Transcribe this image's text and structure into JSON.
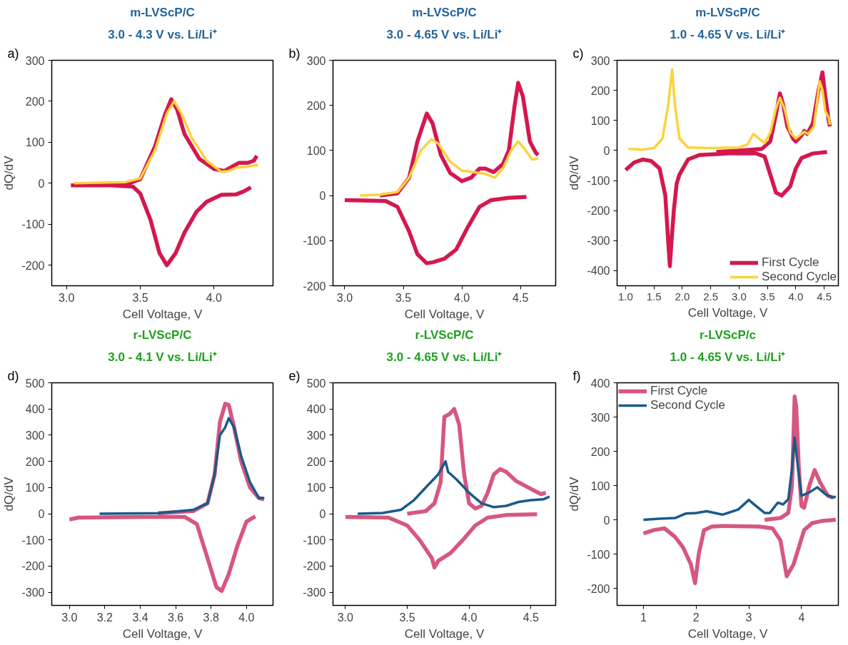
{
  "chart_data": [
    {
      "type": "line",
      "title": "m-LVScP/C",
      "subtitle": "3.0 - 4.3 V vs. Li/Li⁺",
      "xlabel": "Cell Voltage, V",
      "ylabel": "dQ/dV",
      "annotations": [
        "a)"
      ],
      "xlim": [
        2.9,
        4.4
      ],
      "ylim": [
        -250,
        300
      ],
      "xticks": [
        {
          "value": 3,
          "label": "3.0"
        },
        3.5,
        {
          "value": 4,
          "label": "4.0"
        }
      ],
      "yticks": [
        -200,
        -100,
        0,
        100,
        200,
        300
      ],
      "grid": false,
      "legend": false,
      "series": [
        {
          "color": "#d4184f",
          "x": [
            3.03,
            3.4,
            3.5,
            3.6,
            3.67,
            3.71,
            3.75,
            3.8,
            3.9,
            4.0,
            4.07,
            4.12,
            4.17,
            4.23,
            4.27,
            4.29,
            null,
            4.25,
            4.2,
            4.15,
            4.05,
            3.95,
            3.88,
            3.8,
            3.74,
            3.68,
            3.63,
            3.57,
            3.5,
            3.45,
            3.3,
            3.03
          ],
          "values": [
            -5,
            -3,
            10,
            90,
            170,
            205,
            180,
            120,
            60,
            35,
            30,
            40,
            50,
            50,
            55,
            67,
            null,
            -10,
            -20,
            -27,
            -28,
            -45,
            -70,
            -120,
            -170,
            -200,
            -170,
            -90,
            -25,
            -8,
            -5,
            -5
          ]
        },
        {
          "color": "#fdd23a",
          "x": [
            3.05,
            3.4,
            3.5,
            3.6,
            3.68,
            3.73,
            3.78,
            3.85,
            3.95,
            4.05,
            4.1,
            4.15,
            4.22,
            4.3
          ],
          "values": [
            0,
            3,
            12,
            80,
            170,
            200,
            170,
            110,
            55,
            28,
            30,
            38,
            40,
            45
          ]
        }
      ]
    },
    {
      "type": "line",
      "title": "m-LVScP/C",
      "subtitle": "3.0 - 4.65 V vs. Li/Li⁺",
      "xlabel": "Cell Voltage, V",
      "annotations": [
        "b)"
      ],
      "xlim": [
        2.9,
        4.8
      ],
      "ylim": [
        -200,
        300
      ],
      "xticks": [
        {
          "value": 3,
          "label": "3.0"
        },
        3.5,
        {
          "value": 4,
          "label": "4.0"
        },
        4.5
      ],
      "yticks": [
        -200,
        -100,
        0,
        100,
        200,
        300
      ],
      "grid": false,
      "legend": false,
      "series": [
        {
          "color": "#d4184f",
          "x": [
            3.3,
            3.45,
            3.55,
            3.62,
            3.7,
            3.75,
            3.82,
            3.9,
            4.0,
            4.08,
            4.15,
            4.2,
            4.27,
            4.35,
            4.4,
            4.45,
            4.48,
            4.52,
            4.58,
            4.63,
            4.65,
            null,
            4.55,
            4.4,
            4.25,
            4.15,
            4.05,
            3.95,
            3.85,
            3.75,
            3.7,
            3.62,
            3.55,
            3.45,
            3.35,
            3.0
          ],
          "values": [
            0,
            5,
            40,
            120,
            182,
            160,
            90,
            50,
            32,
            40,
            60,
            60,
            52,
            70,
            100,
            200,
            250,
            220,
            120,
            95,
            90,
            null,
            -3,
            -5,
            -10,
            -25,
            -70,
            -120,
            -140,
            -148,
            -150,
            -130,
            -80,
            -25,
            -12,
            -10
          ]
        },
        {
          "color": "#fdd23a",
          "x": [
            3.13,
            3.3,
            3.45,
            3.55,
            3.65,
            3.74,
            3.8,
            3.9,
            4.0,
            4.1,
            4.2,
            4.28,
            4.35,
            4.42,
            4.48,
            4.53,
            4.6,
            4.65
          ],
          "values": [
            0,
            2,
            8,
            40,
            100,
            125,
            115,
            75,
            55,
            52,
            48,
            40,
            60,
            100,
            120,
            105,
            80,
            82
          ]
        }
      ]
    },
    {
      "type": "line",
      "title": "m-LVScP/C",
      "subtitle": "1.0 - 4.65 V vs. Li/Li⁺",
      "xlabel": "Cell Voltage, V",
      "ylabel": "dQ/dV",
      "annotations": [
        "c)"
      ],
      "xlim": [
        0.85,
        4.75
      ],
      "ylim": [
        -450,
        300
      ],
      "xticks": [
        {
          "value": 1,
          "label": "1.0"
        },
        1.5,
        {
          "value": 2,
          "label": "2.0"
        },
        2.5,
        {
          "value": 3,
          "label": "3.0"
        },
        3.5,
        {
          "value": 4,
          "label": "4.0"
        },
        4.5
      ],
      "yticks": [
        -400,
        -300,
        -200,
        -100,
        0,
        100,
        200,
        300
      ],
      "grid": false,
      "legend": "bottom right",
      "series": [
        {
          "name": "First Cycle",
          "color": "#d4184f",
          "x": [
            2.6,
            3.0,
            3.4,
            3.55,
            3.65,
            3.72,
            3.78,
            3.85,
            3.95,
            4.0,
            4.1,
            4.15,
            4.2,
            4.3,
            4.4,
            4.47,
            4.52,
            4.58,
            4.6,
            null,
            4.55,
            4.3,
            4.1,
            4.0,
            3.9,
            3.75,
            3.65,
            3.55,
            3.45,
            3.3,
            2.8,
            2.3,
            2.1,
            1.95,
            1.9,
            1.85,
            1.81,
            1.78,
            1.75,
            1.7,
            1.6,
            1.45,
            1.3,
            1.15,
            1.0
          ],
          "values": [
            -5,
            0,
            5,
            30,
            120,
            190,
            150,
            80,
            40,
            30,
            50,
            65,
            55,
            90,
            200,
            260,
            180,
            100,
            80,
            null,
            -5,
            -10,
            -25,
            -60,
            -120,
            -150,
            -140,
            -80,
            -20,
            -10,
            -10,
            -15,
            -30,
            -80,
            -110,
            -200,
            -300,
            -385,
            -300,
            -150,
            -60,
            -35,
            -30,
            -40,
            -65
          ]
        },
        {
          "name": "Second Cycle",
          "color": "#fdd23a",
          "x": [
            1.05,
            1.3,
            1.5,
            1.65,
            1.75,
            1.82,
            1.87,
            1.95,
            2.1,
            2.5,
            3.0,
            3.15,
            3.25,
            3.35,
            3.45,
            3.55,
            3.65,
            3.72,
            3.8,
            3.9,
            4.0,
            4.1,
            4.15,
            4.22,
            4.32,
            4.42,
            4.47,
            4.52,
            4.58,
            4.6
          ],
          "values": [
            5,
            3,
            8,
            40,
            150,
            270,
            150,
            40,
            10,
            8,
            10,
            20,
            55,
            40,
            25,
            60,
            140,
            175,
            140,
            60,
            40,
            55,
            62,
            55,
            80,
            230,
            200,
            130,
            110,
            85
          ]
        }
      ]
    },
    {
      "type": "line",
      "title": "r-LVScP/C",
      "subtitle": "3.0 - 4.1 V vs. Li/Li⁺",
      "xlabel": "Cell Voltage, V",
      "ylabel": "dQ/dV",
      "annotations": [
        "d)"
      ],
      "xlim": [
        2.9,
        4.15
      ],
      "ylim": [
        -350,
        500
      ],
      "xticks": [
        {
          "value": 3,
          "label": "3.0"
        },
        3.2,
        3.4,
        3.6,
        3.8,
        {
          "value": 4,
          "label": "4.0"
        }
      ],
      "yticks": [
        -300,
        -200,
        -100,
        0,
        100,
        200,
        300,
        400,
        500
      ],
      "grid": false,
      "legend": false,
      "series": [
        {
          "color": "#d6577f",
          "x": [
            3.5,
            3.7,
            3.78,
            3.82,
            3.85,
            3.88,
            3.9,
            3.93,
            3.97,
            4.02,
            4.07,
            4.1,
            null,
            4.05,
            4.0,
            3.95,
            3.9,
            3.86,
            3.83,
            3.78,
            3.72,
            3.65,
            3.4,
            3.05,
            3.0
          ],
          "values": [
            2,
            10,
            40,
            150,
            350,
            420,
            415,
            330,
            200,
            100,
            60,
            55,
            null,
            -10,
            -30,
            -120,
            -230,
            -295,
            -280,
            -170,
            -40,
            -12,
            -12,
            -15,
            -22
          ]
        },
        {
          "color": "#1a5a8a",
          "x": [
            3.17,
            3.5,
            3.7,
            3.78,
            3.82,
            3.85,
            3.88,
            3.9,
            3.93,
            3.97,
            4.02,
            4.07,
            4.1
          ],
          "values": [
            0,
            2,
            15,
            40,
            150,
            300,
            330,
            365,
            330,
            220,
            120,
            60,
            60
          ]
        }
      ]
    },
    {
      "type": "line",
      "title": "r-LVScP/C",
      "subtitle": "3.0 - 4.65 V vs. Li/Li⁺",
      "xlabel": "Cell Voltage, V",
      "annotations": [
        "e)"
      ],
      "xlim": [
        2.9,
        4.7
      ],
      "ylim": [
        -350,
        500
      ],
      "xticks": [
        {
          "value": 3,
          "label": "3.0"
        },
        3.5,
        {
          "value": 4,
          "label": "4.0"
        },
        4.5
      ],
      "yticks": [
        -300,
        -200,
        -100,
        0,
        100,
        200,
        300,
        400,
        500
      ],
      "grid": false,
      "legend": false,
      "series": [
        {
          "color": "#d6577f",
          "x": [
            3.5,
            3.65,
            3.72,
            3.77,
            3.8,
            3.84,
            3.88,
            3.92,
            3.96,
            4.0,
            4.05,
            4.1,
            4.15,
            4.2,
            4.25,
            4.3,
            4.38,
            4.48,
            4.58,
            4.62,
            null,
            4.55,
            4.3,
            4.15,
            4.05,
            3.95,
            3.85,
            3.75,
            3.72,
            3.7,
            3.6,
            3.5,
            3.35,
            3.0
          ],
          "values": [
            0,
            10,
            40,
            120,
            370,
            380,
            400,
            340,
            150,
            40,
            20,
            30,
            80,
            150,
            170,
            160,
            125,
            100,
            75,
            80,
            null,
            -2,
            -5,
            -15,
            -45,
            -100,
            -150,
            -180,
            -205,
            -170,
            -100,
            -45,
            -15,
            -12
          ]
        },
        {
          "color": "#1a5a8a",
          "x": [
            3.1,
            3.3,
            3.45,
            3.55,
            3.65,
            3.75,
            3.81,
            3.83,
            3.9,
            4.0,
            4.1,
            4.2,
            4.3,
            4.4,
            4.5,
            4.6,
            4.65
          ],
          "values": [
            0,
            3,
            15,
            50,
            100,
            150,
            200,
            160,
            130,
            80,
            40,
            25,
            30,
            45,
            52,
            55,
            65
          ]
        }
      ]
    },
    {
      "type": "line",
      "title": "r-LVScP/c",
      "subtitle": "1.0 - 4.65 V vs. Li/Li⁺",
      "xlabel": "Cell Voltage, V",
      "ylabel": "dQ/dV",
      "annotations": [
        "f)"
      ],
      "xlim": [
        0.5,
        4.7
      ],
      "ylim": [
        -250,
        400
      ],
      "xticks": [
        1,
        2,
        3,
        4
      ],
      "yticks": [
        -200,
        -100,
        0,
        100,
        200,
        300,
        400
      ],
      "grid": false,
      "legend": "top left",
      "series": [
        {
          "name": "First Cycle",
          "color": "#d6577f",
          "x": [
            3.3,
            3.6,
            3.75,
            3.82,
            3.87,
            3.9,
            3.95,
            4.0,
            4.05,
            4.15,
            4.25,
            4.35,
            4.5,
            4.6,
            null,
            4.65,
            4.4,
            4.2,
            4.05,
            3.95,
            3.85,
            3.72,
            3.68,
            3.6,
            3.45,
            3.2,
            2.5,
            2.3,
            2.15,
            2.05,
            1.98,
            1.9,
            1.75,
            1.6,
            1.4,
            1.2,
            1.0
          ],
          "values": [
            0,
            5,
            20,
            100,
            360,
            330,
            150,
            40,
            35,
            100,
            145,
            110,
            70,
            65,
            null,
            0,
            -3,
            -10,
            -30,
            -80,
            -130,
            -165,
            -130,
            -60,
            -25,
            -20,
            -18,
            -20,
            -30,
            -100,
            -185,
            -130,
            -80,
            -50,
            -25,
            -30,
            -40
          ]
        },
        {
          "name": "Second Cycle",
          "color": "#1a5a8a",
          "x": [
            1.0,
            1.3,
            1.6,
            1.8,
            2.0,
            2.2,
            2.5,
            2.8,
            3.0,
            3.1,
            3.3,
            3.4,
            3.55,
            3.65,
            3.75,
            3.82,
            3.87,
            3.92,
            4.0,
            4.15,
            4.3,
            4.45,
            4.6,
            4.65
          ],
          "values": [
            0,
            3,
            5,
            18,
            20,
            25,
            15,
            30,
            58,
            45,
            20,
            20,
            50,
            45,
            60,
            150,
            240,
            170,
            70,
            80,
            95,
            75,
            65,
            68
          ]
        }
      ]
    }
  ]
}
